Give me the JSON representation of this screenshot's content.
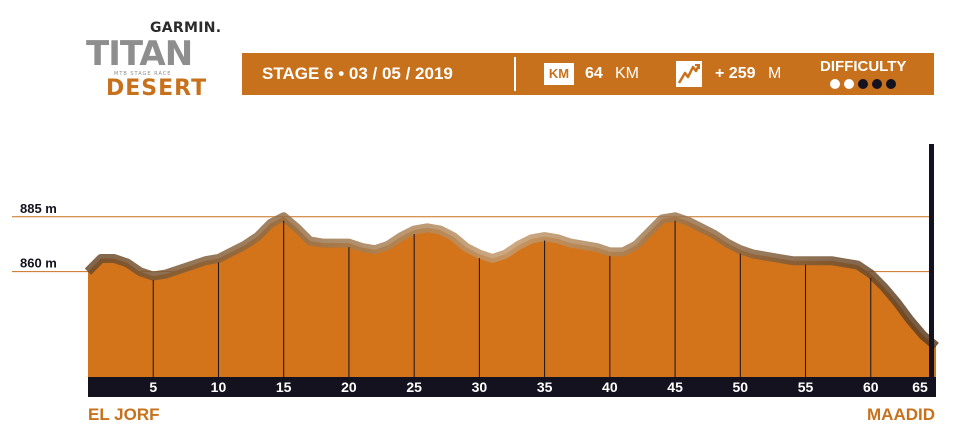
{
  "logo": {
    "sponsor": "GARMIN.",
    "name": "TITAN",
    "tagline": "MTB STAGE RACE",
    "edition": "DESERT"
  },
  "header": {
    "stage_text": "STAGE 6 • 03 / 05 / 2019",
    "km_badge": "KM",
    "distance_value": "64",
    "distance_unit": "KM",
    "elevation_icon": "mountain-climb-icon",
    "elevation_value": "+ 259",
    "elevation_unit": "M",
    "difficulty_label": "DIFFICULTY",
    "difficulty_level": 3,
    "difficulty_max": 5
  },
  "colors": {
    "accent": "#c8711c",
    "fill": "#d4741a",
    "dark": "#14121f",
    "dot_empty": "#ffffff",
    "dot_full": "#14121f"
  },
  "route": {
    "start": "EL JORF",
    "end": "MAADID"
  },
  "chart_data": {
    "type": "area",
    "title": "",
    "xlabel": "",
    "ylabel": "",
    "x_ticks": [
      5,
      10,
      15,
      20,
      25,
      30,
      35,
      40,
      45,
      50,
      55,
      60,
      65
    ],
    "y_ticks": [
      {
        "value": 860,
        "label": "860 m"
      },
      {
        "value": 885,
        "label": "885 m"
      }
    ],
    "xlim": [
      0,
      65
    ],
    "ylim": [
      812,
      920
    ],
    "grid": "vertical lines at each x tick",
    "series": [
      {
        "x": [
          0,
          1,
          2,
          3,
          4,
          5,
          6,
          7,
          8,
          9,
          10,
          11,
          12,
          13,
          14,
          15,
          16,
          17,
          18,
          19,
          20,
          21,
          22,
          23,
          24,
          25,
          26,
          27,
          28,
          29,
          30,
          31,
          32,
          33,
          34,
          35,
          36,
          37,
          38,
          39,
          40,
          41,
          42,
          43,
          44,
          45,
          46,
          47,
          48,
          49,
          50,
          51,
          52,
          53,
          54,
          55,
          56,
          57,
          58,
          59,
          60,
          61,
          62,
          63,
          64,
          65
        ],
        "values": [
          860,
          866,
          866,
          864,
          860,
          858,
          859,
          861,
          863,
          865,
          866,
          869,
          872,
          876,
          882,
          885,
          880,
          874,
          873,
          873,
          873,
          871,
          870,
          872,
          876,
          879,
          880,
          879,
          876,
          871,
          868,
          866,
          868,
          872,
          875,
          876,
          875,
          873,
          872,
          871,
          869,
          869,
          872,
          878,
          884,
          885,
          883,
          880,
          877,
          873,
          870,
          868,
          867,
          866,
          865,
          865,
          865,
          865,
          864,
          863,
          859,
          853,
          846,
          838,
          831,
          826
        ]
      }
    ]
  }
}
